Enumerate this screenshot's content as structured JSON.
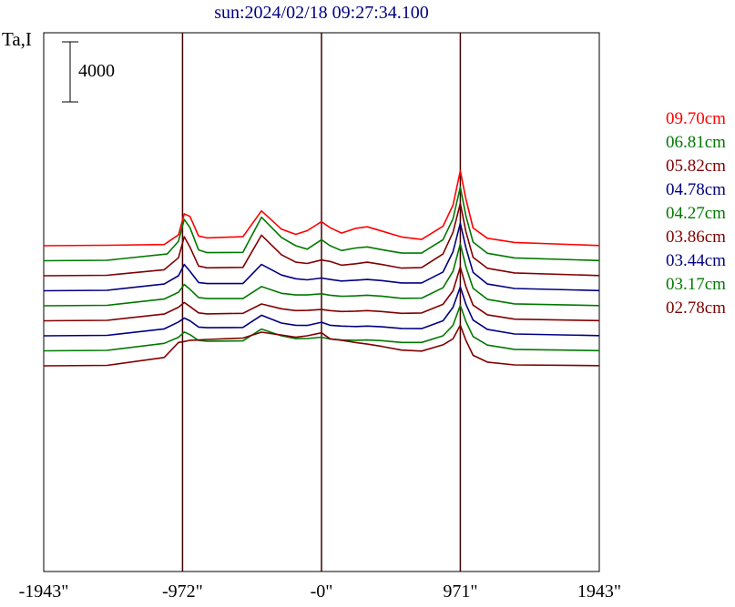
{
  "chart_data": {
    "type": "line",
    "title": "sun:2024/02/18 09:27:34.100",
    "ylabel": "Ta,I",
    "scale_bar_label": "4000",
    "scale_bar_value": 4000,
    "xlim": [
      -1943,
      1943
    ],
    "x_tick_values": [
      -1943,
      -972,
      0,
      971,
      1943
    ],
    "x_tick_labels": [
      "-1943\"",
      "-972\"",
      "-0\"",
      "971\"",
      "1943\""
    ],
    "vertical_markers": [
      -972,
      0,
      971
    ],
    "grid": false,
    "legend_position": "right",
    "series_offset": 1000,
    "series": [
      {
        "name": "09.70cm",
        "color": "#ff0000",
        "x": [
          -1943,
          -1500,
          -1100,
          -1000,
          -960,
          -920,
          -860,
          -800,
          -550,
          -420,
          -280,
          -180,
          -100,
          0,
          60,
          140,
          240,
          320,
          420,
          560,
          700,
          850,
          920,
          971,
          1010,
          1060,
          1160,
          1350,
          1943
        ],
        "y": [
          0,
          30,
          80,
          720,
          2120,
          1950,
          650,
          520,
          600,
          2320,
          1100,
          760,
          1000,
          1600,
          1200,
          840,
          1160,
          1260,
          980,
          580,
          420,
          1300,
          2700,
          4990,
          3120,
          1180,
          500,
          220,
          10
        ]
      },
      {
        "name": "06.81cm",
        "color": "#007800",
        "x": [
          -1943,
          -1500,
          -1080,
          -1000,
          -960,
          -920,
          -860,
          -800,
          -550,
          -420,
          -280,
          -180,
          -100,
          0,
          60,
          140,
          240,
          320,
          420,
          560,
          700,
          850,
          920,
          971,
          1010,
          1060,
          1160,
          1350,
          1943
        ],
        "y": [
          0,
          30,
          450,
          1300,
          2750,
          2200,
          720,
          540,
          560,
          2900,
          1550,
          1000,
          770,
          1400,
          1000,
          680,
          850,
          920,
          740,
          510,
          510,
          1400,
          2800,
          4910,
          3000,
          1240,
          500,
          190,
          10
        ]
      },
      {
        "name": "05.82cm",
        "color": "#800000",
        "x": [
          -1943,
          -1500,
          -1100,
          -1000,
          -960,
          -920,
          -860,
          -800,
          -550,
          -420,
          -280,
          -180,
          -100,
          0,
          60,
          140,
          240,
          320,
          420,
          560,
          700,
          850,
          920,
          971,
          1010,
          1060,
          1160,
          1350,
          1943
        ],
        "y": [
          0,
          30,
          400,
          1200,
          2600,
          1900,
          650,
          530,
          560,
          2700,
          1400,
          900,
          820,
          1050,
          950,
          700,
          800,
          900,
          750,
          510,
          540,
          1450,
          2900,
          4820,
          2950,
          1230,
          500,
          190,
          10
        ]
      },
      {
        "name": "04.78cm",
        "color": "#000080",
        "x": [
          -1943,
          -1500,
          -1100,
          -1000,
          -960,
          -920,
          -860,
          -800,
          -550,
          -420,
          -280,
          -180,
          -100,
          0,
          60,
          140,
          240,
          320,
          420,
          560,
          700,
          850,
          920,
          971,
          1010,
          1060,
          1160,
          1350,
          1943
        ],
        "y": [
          0,
          30,
          450,
          1000,
          1750,
          1300,
          550,
          480,
          480,
          1750,
          1050,
          800,
          730,
          850,
          750,
          650,
          700,
          750,
          680,
          520,
          520,
          1250,
          2600,
          4500,
          2870,
          1230,
          450,
          150,
          10
        ]
      },
      {
        "name": "04.27cm",
        "color": "#007800",
        "x": [
          -1943,
          -1500,
          -1100,
          -1000,
          -960,
          -920,
          -860,
          -800,
          -550,
          -420,
          -280,
          -180,
          -100,
          0,
          60,
          140,
          240,
          320,
          420,
          560,
          700,
          850,
          920,
          971,
          1010,
          1060,
          1160,
          1350,
          1943
        ],
        "y": [
          0,
          30,
          450,
          900,
          1420,
          1100,
          550,
          480,
          480,
          1280,
          830,
          720,
          720,
          800,
          700,
          630,
          660,
          700,
          640,
          500,
          510,
          1200,
          2300,
          4120,
          2600,
          1170,
          430,
          130,
          10
        ]
      },
      {
        "name": "03.86cm",
        "color": "#800000",
        "x": [
          -1943,
          -1500,
          -1100,
          -1000,
          -960,
          -920,
          -860,
          -800,
          -550,
          -420,
          -280,
          -180,
          -100,
          0,
          60,
          140,
          240,
          320,
          420,
          560,
          700,
          850,
          920,
          971,
          1010,
          1060,
          1160,
          1350,
          1943
        ],
        "y": [
          0,
          30,
          450,
          900,
          1220,
          950,
          530,
          460,
          500,
          1120,
          800,
          680,
          690,
          750,
          680,
          620,
          640,
          680,
          620,
          500,
          520,
          1100,
          2000,
          3580,
          2280,
          1040,
          400,
          110,
          10
        ]
      },
      {
        "name": "03.44cm",
        "color": "#000080",
        "x": [
          -1943,
          -1500,
          -1100,
          -1000,
          -960,
          -920,
          -860,
          -800,
          -550,
          -420,
          -280,
          -180,
          -100,
          0,
          60,
          140,
          240,
          320,
          420,
          560,
          700,
          850,
          920,
          971,
          1010,
          1060,
          1160,
          1350,
          1943
        ],
        "y": [
          0,
          30,
          460,
          920,
          1180,
          1000,
          580,
          540,
          560,
          1370,
          850,
          700,
          690,
          900,
          700,
          650,
          620,
          650,
          600,
          490,
          480,
          1000,
          1900,
          3260,
          2110,
          1050,
          430,
          120,
          10
        ]
      },
      {
        "name": "03.17cm",
        "color": "#007800",
        "x": [
          -1943,
          -1500,
          -1100,
          -1000,
          -960,
          -920,
          -860,
          -800,
          -550,
          -420,
          -280,
          -180,
          -100,
          0,
          60,
          140,
          240,
          320,
          420,
          560,
          700,
          850,
          920,
          971,
          1010,
          1060,
          1160,
          1350,
          1943
        ],
        "y": [
          0,
          30,
          500,
          900,
          1250,
          1080,
          690,
          640,
          660,
          1450,
          1000,
          810,
          820,
          910,
          780,
          720,
          700,
          720,
          680,
          560,
          560,
          1000,
          1700,
          3030,
          1960,
          950,
          380,
          100,
          10
        ]
      },
      {
        "name": "02.78cm",
        "color": "#800000",
        "x": [
          -1943,
          -1500,
          -1100,
          -1000,
          -960,
          -920,
          -860,
          -800,
          -550,
          -420,
          -280,
          -180,
          -100,
          0,
          60,
          140,
          240,
          320,
          420,
          560,
          700,
          850,
          920,
          971,
          1010,
          1060,
          1160,
          1350,
          1943
        ],
        "y": [
          0,
          30,
          560,
          1560,
          1620,
          1700,
          1720,
          1760,
          1850,
          2240,
          2050,
          1900,
          2000,
          2200,
          1800,
          1700,
          1550,
          1450,
          1300,
          1050,
          980,
          1400,
          1800,
          2700,
          1700,
          700,
          250,
          60,
          10
        ]
      }
    ]
  }
}
